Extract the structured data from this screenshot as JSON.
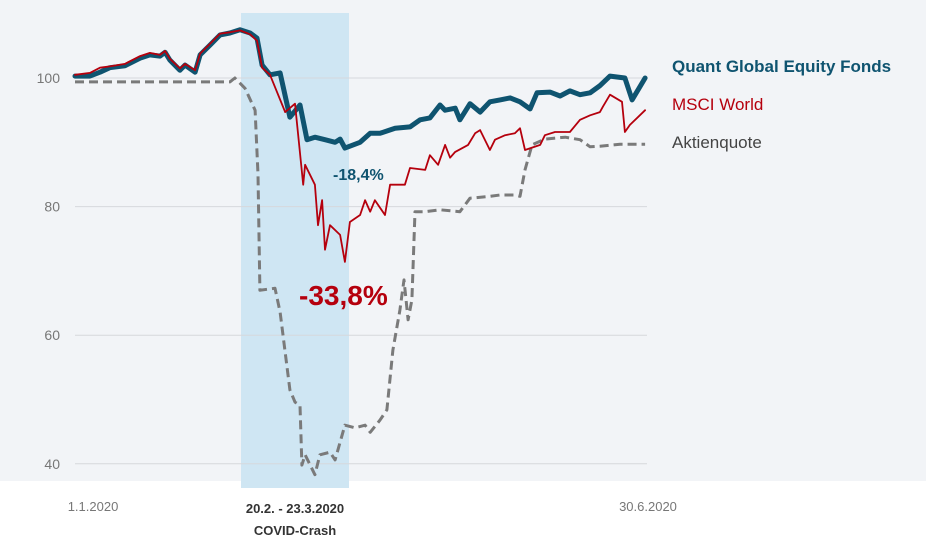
{
  "chart_data": {
    "type": "line",
    "title": "",
    "xlabel": "",
    "ylabel": "",
    "x_unit": "days since 1.1.2020",
    "xlim": [
      0,
      181
    ],
    "ylim": [
      37,
      110
    ],
    "yticks": [
      100,
      80,
      60,
      40
    ],
    "grid": true,
    "legend_position": "right",
    "x_tick_labels": [
      {
        "x": 0,
        "label": "1.1.2020"
      },
      {
        "x": 181,
        "label": "30.6.2020"
      }
    ],
    "highlight": {
      "from": 52.2,
      "to": 86.4,
      "label_line1": "20.2. - 23.3.2020",
      "label_line2": "COVID-Crash",
      "color": "#cfe6f3"
    },
    "annotations": [
      {
        "text": "-18,4%",
        "color": "#0f5470"
      },
      {
        "text": "-33,8%",
        "color": "#b5000d"
      }
    ],
    "series": [
      {
        "name": "Quant Global Equity Fonds",
        "color": "#0f5470",
        "style": "solid-thick",
        "points": [
          [
            0,
            100.3
          ],
          [
            4.7,
            100.3
          ],
          [
            7.9,
            100.9
          ],
          [
            11,
            101.6
          ],
          [
            15.8,
            101.9
          ],
          [
            20.6,
            103.1
          ],
          [
            23.7,
            103.6
          ],
          [
            26.9,
            103.4
          ],
          [
            28.5,
            104
          ],
          [
            30,
            102.8
          ],
          [
            33.2,
            101.2
          ],
          [
            34.8,
            102
          ],
          [
            38,
            100.9
          ],
          [
            39.6,
            103.6
          ],
          [
            42.7,
            105.1
          ],
          [
            45.9,
            106.7
          ],
          [
            49,
            107
          ],
          [
            52.2,
            107.5
          ],
          [
            55.4,
            107
          ],
          [
            57.6,
            106.2
          ],
          [
            59.2,
            102
          ],
          [
            61.7,
            100.5
          ],
          [
            64.9,
            100.8
          ],
          [
            68,
            93.9
          ],
          [
            71.2,
            95.8
          ],
          [
            73.4,
            90.4
          ],
          [
            75.9,
            90.8
          ],
          [
            79.1,
            90.4
          ],
          [
            82.3,
            90
          ],
          [
            83.9,
            90.5
          ],
          [
            85.4,
            89.1
          ],
          [
            90.2,
            90
          ],
          [
            93.4,
            91.4
          ],
          [
            96.5,
            91.4
          ],
          [
            101.3,
            92.2
          ],
          [
            106,
            92.4
          ],
          [
            109.2,
            93.5
          ],
          [
            112.3,
            93.8
          ],
          [
            115.5,
            95.8
          ],
          [
            117.1,
            95
          ],
          [
            120.3,
            95.3
          ],
          [
            121.8,
            93.5
          ],
          [
            125,
            96
          ],
          [
            128.2,
            94.7
          ],
          [
            131.3,
            96.3
          ],
          [
            134.5,
            96.6
          ],
          [
            137.7,
            96.9
          ],
          [
            140.8,
            96.3
          ],
          [
            144,
            95.2
          ],
          [
            146.2,
            97.7
          ],
          [
            150.3,
            97.8
          ],
          [
            153.5,
            97.2
          ],
          [
            156.6,
            98
          ],
          [
            159.8,
            97.4
          ],
          [
            163,
            97.7
          ],
          [
            166.1,
            98.8
          ],
          [
            169.3,
            100.3
          ],
          [
            174,
            100
          ],
          [
            176.3,
            96.6
          ],
          [
            180.4,
            100
          ]
        ]
      },
      {
        "name": "MSCI World",
        "color": "#b5000d",
        "style": "solid-thin",
        "points": [
          [
            0,
            100.5
          ],
          [
            4.7,
            100.8
          ],
          [
            7.9,
            101.6
          ],
          [
            11,
            101.8
          ],
          [
            15.8,
            102.2
          ],
          [
            20.6,
            103.4
          ],
          [
            23.7,
            103.9
          ],
          [
            26.9,
            103.6
          ],
          [
            28.5,
            104.2
          ],
          [
            30,
            103
          ],
          [
            33.2,
            101.5
          ],
          [
            34.8,
            102.2
          ],
          [
            38,
            101.2
          ],
          [
            39.6,
            103.8
          ],
          [
            42.7,
            105.3
          ],
          [
            45.9,
            106.9
          ],
          [
            49,
            107.1
          ],
          [
            52.2,
            107.4
          ],
          [
            55.4,
            106.8
          ],
          [
            57.6,
            105.8
          ],
          [
            59.2,
            101.6
          ],
          [
            61.7,
            100.5
          ],
          [
            66.5,
            94.7
          ],
          [
            69.6,
            96
          ],
          [
            72.2,
            83.4
          ],
          [
            72.8,
            86.5
          ],
          [
            75.9,
            83.4
          ],
          [
            76.9,
            77.1
          ],
          [
            78.2,
            81
          ],
          [
            79.1,
            73.3
          ],
          [
            80.7,
            77.1
          ],
          [
            83.9,
            75.6
          ],
          [
            85.4,
            71.4
          ],
          [
            87,
            77.6
          ],
          [
            90.2,
            78.7
          ],
          [
            91.8,
            81
          ],
          [
            93.4,
            79.2
          ],
          [
            94.9,
            81
          ],
          [
            98.1,
            78.7
          ],
          [
            99.7,
            83.4
          ],
          [
            104.4,
            83.4
          ],
          [
            106,
            86
          ],
          [
            110.8,
            85.7
          ],
          [
            112.3,
            88
          ],
          [
            114.9,
            86.5
          ],
          [
            117.1,
            89.6
          ],
          [
            118.7,
            87.6
          ],
          [
            120.3,
            88.5
          ],
          [
            124.4,
            89.6
          ],
          [
            126.6,
            91.4
          ],
          [
            128.2,
            91.9
          ],
          [
            131.3,
            88.8
          ],
          [
            132.9,
            90.4
          ],
          [
            136.1,
            91.1
          ],
          [
            139.2,
            91.4
          ],
          [
            140.8,
            92.2
          ],
          [
            142.4,
            88.8
          ],
          [
            147.2,
            89.6
          ],
          [
            148.7,
            91.1
          ],
          [
            151.9,
            91.6
          ],
          [
            156.6,
            91.6
          ],
          [
            159.8,
            93.5
          ],
          [
            163,
            94.2
          ],
          [
            166.1,
            94.7
          ],
          [
            167.1,
            95.6
          ],
          [
            169.3,
            97.4
          ],
          [
            173.1,
            96.3
          ],
          [
            174,
            91.6
          ],
          [
            175.6,
            92.7
          ],
          [
            180.4,
            95
          ]
        ]
      },
      {
        "name": "Aktienquote",
        "color": "#7a7a7a",
        "style": "dashed",
        "points": [
          [
            0,
            99.4
          ],
          [
            49,
            99.4
          ],
          [
            50.6,
            100
          ],
          [
            53.8,
            98.4
          ],
          [
            57,
            95
          ],
          [
            57.9,
            85
          ],
          [
            58.5,
            67
          ],
          [
            63.3,
            67.3
          ],
          [
            64.9,
            63.6
          ],
          [
            68,
            51.5
          ],
          [
            69.6,
            49.6
          ],
          [
            71.2,
            49.1
          ],
          [
            71.8,
            39.8
          ],
          [
            72.8,
            41.4
          ],
          [
            75.9,
            38.3
          ],
          [
            77.5,
            41.4
          ],
          [
            80.7,
            41.8
          ],
          [
            82.3,
            40.6
          ],
          [
            85.4,
            46
          ],
          [
            88.6,
            45.6
          ],
          [
            91.8,
            46
          ],
          [
            93.4,
            44.9
          ],
          [
            96.5,
            46.8
          ],
          [
            98.7,
            48.4
          ],
          [
            100.6,
            57.7
          ],
          [
            102.8,
            63.9
          ],
          [
            104.1,
            68.6
          ],
          [
            105.4,
            62.4
          ],
          [
            106.6,
            65.5
          ],
          [
            107.6,
            79.2
          ],
          [
            110.8,
            79.2
          ],
          [
            115.5,
            79.5
          ],
          [
            121.8,
            79.2
          ],
          [
            125,
            81.3
          ],
          [
            131.3,
            81.6
          ],
          [
            134.5,
            81.8
          ],
          [
            139.2,
            81.8
          ],
          [
            140.8,
            81.6
          ],
          [
            142.4,
            85.7
          ],
          [
            144.6,
            89.6
          ],
          [
            148.7,
            90.5
          ],
          [
            155.1,
            90.8
          ],
          [
            159.8,
            90.4
          ],
          [
            163,
            89.3
          ],
          [
            166.1,
            89.4
          ],
          [
            172.5,
            89.7
          ],
          [
            180.4,
            89.7
          ]
        ]
      }
    ]
  }
}
